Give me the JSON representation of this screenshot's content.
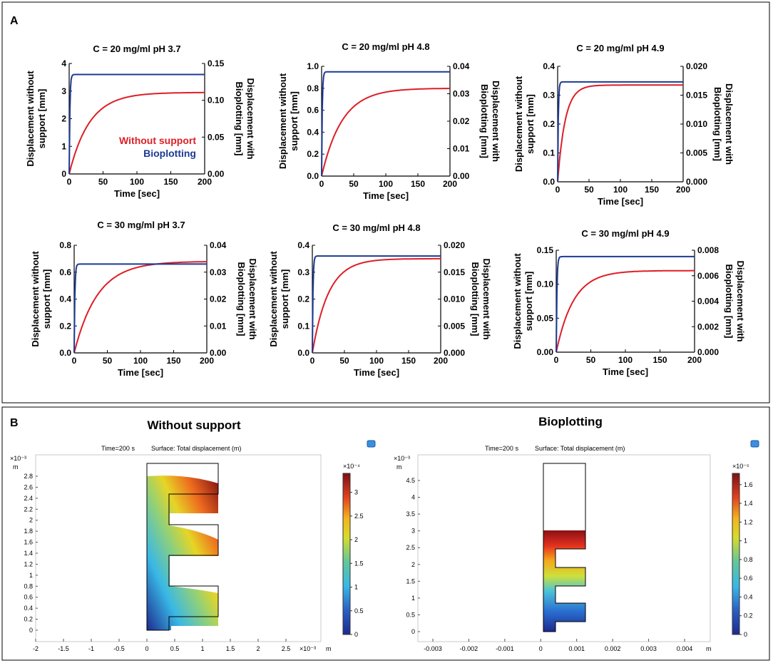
{
  "panel_labels": {
    "a": "A",
    "b": "B"
  },
  "chart_data": [
    {
      "type": "line",
      "title": "C = 20 mg/ml pH 3.7",
      "xlabel": "Time [sec]",
      "ylabel": "Displacement without support [mm]",
      "ylabel_right": "Displacement with Bioplotting [mm]",
      "xlim": [
        0,
        200
      ],
      "ylim": [
        0,
        4
      ],
      "ylim_right": [
        0,
        0.15
      ],
      "xticks": [
        "0",
        "50",
        "100",
        "150",
        "200"
      ],
      "yticks": [
        "0",
        "1",
        "2",
        "3",
        "4"
      ],
      "yticks_right": [
        "0.00",
        "0.05",
        "0.10",
        "0.15"
      ],
      "legend": {
        "position": "center-right",
        "entries": [
          "Without support",
          "Bioplotting"
        ]
      },
      "series": [
        {
          "name": "Without support",
          "axis": "left",
          "plateau": 2.95,
          "tau": 30
        },
        {
          "name": "Bioplotting",
          "axis": "right",
          "plateau": 0.135,
          "tau": 1
        }
      ]
    },
    {
      "type": "line",
      "title": "C = 20 mg/ml pH 4.8",
      "xlabel": "Time [sec]",
      "ylabel": "Displacement without support [mm]",
      "ylabel_right": "Displacement with Bioplotting [mm]",
      "xlim": [
        0,
        200
      ],
      "ylim": [
        0,
        1
      ],
      "ylim_right": [
        0,
        0.04
      ],
      "xticks": [
        "0",
        "50",
        "100",
        "150",
        "200"
      ],
      "yticks": [
        "0.0",
        "0.2",
        "0.4",
        "0.6",
        "0.8",
        "1.0"
      ],
      "yticks_right": [
        "0.00",
        "0.01",
        "0.02",
        "0.03",
        "0.04"
      ],
      "series": [
        {
          "name": "Without support",
          "axis": "left",
          "plateau": 0.8,
          "tau": 32
        },
        {
          "name": "Bioplotting",
          "axis": "right",
          "plateau": 0.038,
          "tau": 1
        }
      ]
    },
    {
      "type": "line",
      "title": "C = 20 mg/ml pH 4.9",
      "xlabel": "Time [sec]",
      "ylabel": "Displacement without support [mm]",
      "ylabel_right": "Displacement with Bioplotting [mm]",
      "xlim": [
        0,
        200
      ],
      "ylim": [
        0,
        0.4
      ],
      "ylim_right": [
        0,
        0.02
      ],
      "xticks": [
        "0",
        "50",
        "100",
        "150",
        "200"
      ],
      "yticks": [
        "0.0",
        "0.1",
        "0.2",
        "0.3",
        "0.4"
      ],
      "yticks_right": [
        "0.000",
        "0.005",
        "0.010",
        "0.015",
        "0.020"
      ],
      "series": [
        {
          "name": "Without support",
          "axis": "left",
          "plateau": 0.335,
          "tau": 12
        },
        {
          "name": "Bioplotting",
          "axis": "right",
          "plateau": 0.0173,
          "tau": 1
        }
      ]
    },
    {
      "type": "line",
      "title": "C = 30 mg/ml pH 3.7",
      "xlabel": "Time [sec]",
      "ylabel": "Displacement without support [mm]",
      "ylabel_right": "Displacement with Bioplotting [mm]",
      "xlim": [
        0,
        200
      ],
      "ylim": [
        0,
        0.8
      ],
      "ylim_right": [
        0,
        0.04
      ],
      "xticks": [
        "0",
        "50",
        "100",
        "150",
        "200"
      ],
      "yticks": [
        "0.0",
        "0.2",
        "0.4",
        "0.6",
        "0.8"
      ],
      "yticks_right": [
        "0.00",
        "0.01",
        "0.02",
        "0.03",
        "0.04"
      ],
      "series": [
        {
          "name": "Without support",
          "axis": "left",
          "plateau": 0.68,
          "tau": 35
        },
        {
          "name": "Bioplotting",
          "axis": "right",
          "plateau": 0.033,
          "tau": 1
        }
      ]
    },
    {
      "type": "line",
      "title": "C = 30 mg/ml pH 4.8",
      "xlabel": "Time [sec]",
      "ylabel": "Displacement without support [mm]",
      "ylabel_right": "Displacement with Bioplotting [mm]",
      "xlim": [
        0,
        200
      ],
      "ylim": [
        0,
        0.4
      ],
      "ylim_right": [
        0,
        0.02
      ],
      "xticks": [
        "0",
        "50",
        "100",
        "150",
        "200"
      ],
      "yticks": [
        "0.0",
        "0.1",
        "0.2",
        "0.3",
        "0.4"
      ],
      "yticks_right": [
        "0.000",
        "0.005",
        "0.010",
        "0.015",
        "0.020"
      ],
      "series": [
        {
          "name": "Without support",
          "axis": "left",
          "plateau": 0.35,
          "tau": 25
        },
        {
          "name": "Bioplotting",
          "axis": "right",
          "plateau": 0.018,
          "tau": 1
        }
      ]
    },
    {
      "type": "line",
      "title": "C = 30 mg/ml pH 4.9",
      "xlabel": "Time [sec]",
      "ylabel": "Displacement without support [mm]",
      "ylabel_right": "Displacement with Bioplotting [mm]",
      "xlim": [
        0,
        200
      ],
      "ylim": [
        0,
        0.15
      ],
      "ylim_right": [
        0,
        0.008
      ],
      "xticks": [
        "0",
        "50",
        "100",
        "150",
        "200"
      ],
      "yticks": [
        "0.00",
        "0.05",
        "0.10",
        "0.15"
      ],
      "yticks_right": [
        "0.000",
        "0.002",
        "0.004",
        "0.006",
        "0.008"
      ],
      "series": [
        {
          "name": "Without support",
          "axis": "left",
          "plateau": 0.12,
          "tau": 25
        },
        {
          "name": "Bioplotting",
          "axis": "right",
          "plateau": 0.0075,
          "tau": 1
        }
      ]
    }
  ],
  "simulations": [
    {
      "title": "Without support",
      "caption_time": "Time=200 s",
      "caption_surface": "Surface: Total displacement (m)",
      "y_exponent": "×10⁻³",
      "y_unit": "m",
      "yticks": [
        "0",
        "0.2",
        "0.4",
        "0.6",
        "0.8",
        "1",
        "1.2",
        "1.4",
        "1.6",
        "1.8",
        "2",
        "2.2",
        "2.4",
        "2.6",
        "2.8"
      ],
      "x_exponent": "×10⁻³",
      "x_unit": "m",
      "xticks": [
        "-2",
        "-1.5",
        "-1",
        "-0.5",
        "0",
        "0.5",
        "1",
        "1.5",
        "2",
        "2.5"
      ],
      "colorbar": {
        "exponent": "×10⁻⁴",
        "ticks": [
          "0",
          "0.5",
          "1",
          "1.5",
          "2",
          "2.5",
          "3"
        ]
      }
    },
    {
      "title": "Bioplotting",
      "caption_time": "Time=200 s",
      "caption_surface": "Surface: Total displacement (m)",
      "y_exponent": "×10⁻³",
      "y_unit": "m",
      "yticks": [
        "0",
        "0.5",
        "1",
        "1.5",
        "2",
        "2.5",
        "3",
        "3.5",
        "4",
        "4.5"
      ],
      "x_unit": "m",
      "xticks": [
        "-0.003",
        "-0.002",
        "-0.001",
        "0",
        "0.001",
        "0.002",
        "0.003",
        "0.004"
      ],
      "colorbar": {
        "exponent": "×10⁻⁵",
        "ticks": [
          "0",
          "0.2",
          "0.4",
          "0.6",
          "0.8",
          "1",
          "1.2",
          "1.4",
          "1.6"
        ]
      }
    }
  ],
  "colors": {
    "without_support": "#dd1f26",
    "bioplotting": "#1c3a94",
    "frame": "#000000"
  }
}
